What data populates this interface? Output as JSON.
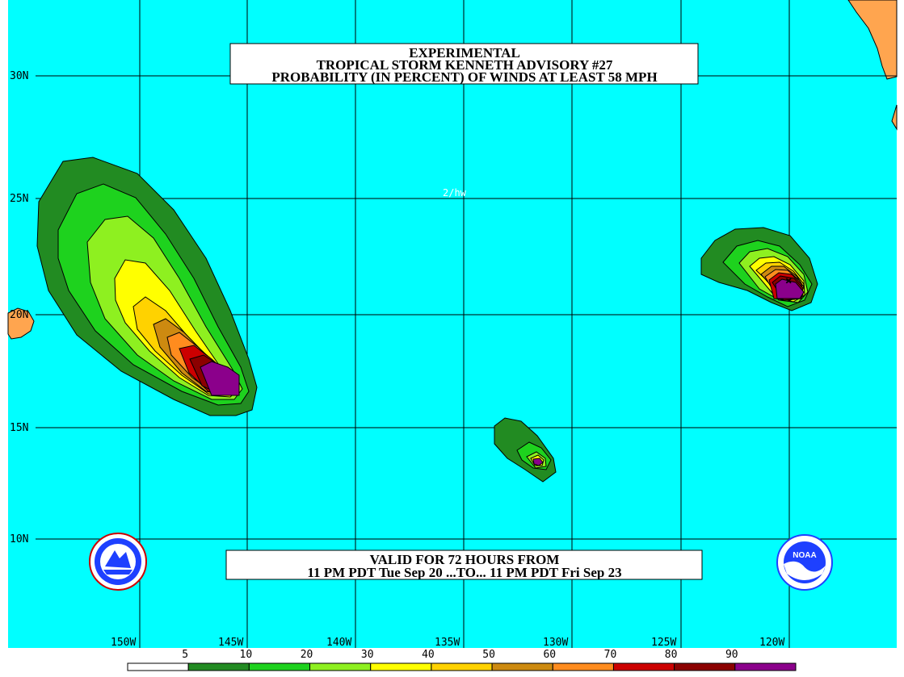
{
  "title_box": {
    "line1": "EXPERIMENTAL",
    "line2": "TROPICAL STORM KENNETH ADVISORY #27",
    "line3": "PROBABILITY (IN PERCENT) OF WINDS AT LEAST 58 MPH"
  },
  "valid_box": {
    "line1": "VALID FOR 72 HOURS FROM",
    "line2": "11 PM PDT Tue Sep 20 ...TO... 11 PM PDT Fri Sep 23"
  },
  "annotation": "2/hw",
  "lat_labels": [
    "30N",
    "25N",
    "20N",
    "15N",
    "10N"
  ],
  "lon_labels": [
    "150W",
    "145W",
    "140W",
    "135W",
    "130W",
    "125W",
    "120W"
  ],
  "legend": {
    "values": [
      "5",
      "10",
      "20",
      "30",
      "40",
      "50",
      "60",
      "70",
      "80",
      "90"
    ],
    "colors": [
      "#ffffff",
      "#228b22",
      "#1ed21e",
      "#8ef020",
      "#ffff00",
      "#ffd200",
      "#cd8a10",
      "#ff8c1e",
      "#cc0000",
      "#8b0000",
      "#8b008b"
    ]
  },
  "colors": {
    "ocean": "#00ffff",
    "land": "#ffa54f",
    "grid": "#000000"
  },
  "logos": {
    "left": "nws-logo",
    "right": "noaa-logo"
  }
}
